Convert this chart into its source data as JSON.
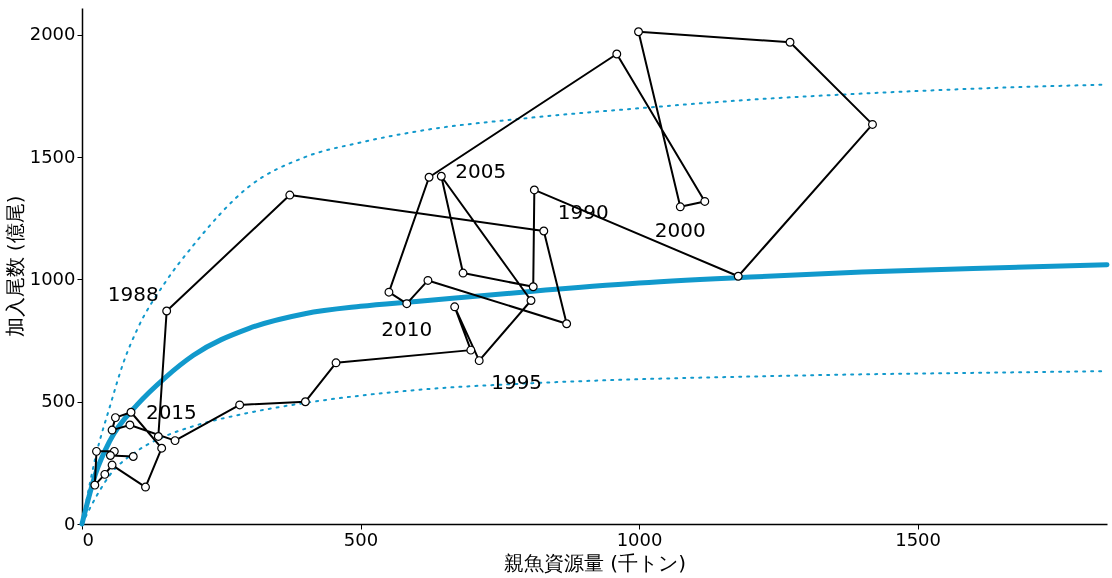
{
  "chart_data": {
    "type": "line",
    "xlabel": "親魚資源量 (千トン)",
    "ylabel": "加入尾数 (億尾)",
    "xlim": [
      0,
      1840
    ],
    "ylim": [
      0,
      2110
    ],
    "xticks": [
      0,
      500,
      1000,
      1500
    ],
    "yticks": [
      0,
      500,
      1000,
      1500,
      2000
    ],
    "grid": false,
    "series": [
      {
        "color": "#1199cc",
        "line_style": "solid",
        "marker": "none",
        "x": [
          0,
          25,
          50,
          100,
          150,
          200,
          300,
          400,
          500,
          600,
          800,
          1000,
          1200,
          1400,
          1600,
          1840
        ],
        "values": [
          0,
          210,
          340,
          490,
          600,
          690,
          800,
          860,
          890,
          910,
          950,
          985,
          1010,
          1030,
          1045,
          1060
        ]
      },
      {
        "color": "#1199cc",
        "line_style": "dotted",
        "marker": "none",
        "x": [
          0,
          25,
          50,
          75,
          100,
          150,
          200,
          300,
          400,
          500,
          600,
          800,
          1000,
          1200,
          1400,
          1600,
          1840
        ],
        "values": [
          0,
          280,
          480,
          664,
          800,
          990,
          1140,
          1380,
          1500,
          1560,
          1605,
          1660,
          1700,
          1735,
          1760,
          1780,
          1797
        ]
      },
      {
        "color": "#1199cc",
        "line_style": "dotted",
        "marker": "none",
        "x": [
          0,
          25,
          50,
          100,
          150,
          200,
          300,
          400,
          500,
          600,
          800,
          1000,
          1200,
          1400,
          1600,
          1840
        ],
        "values": [
          0,
          110,
          200,
          300,
          360,
          400,
          455,
          495,
          525,
          548,
          575,
          592,
          603,
          612,
          618,
          625
        ]
      },
      {
        "color": "#000000",
        "line_style": "solid",
        "marker": "circle",
        "x": [
          137,
          152,
          373,
          829,
          870,
          621,
          583,
          551,
          623,
          960,
          1118,
          1074,
          999,
          1271,
          1419,
          1178,
          812,
          810,
          684,
          645,
          806,
          713,
          669,
          698,
          456,
          401,
          283,
          167,
          86,
          54,
          60,
          88,
          143,
          114,
          54,
          41,
          23,
          26,
          58,
          51,
          92
        ],
        "values": [
          358,
          871,
          1345,
          1198,
          819,
          996,
          901,
          948,
          1418,
          1922,
          1319,
          1297,
          2013,
          1970,
          1634,
          1013,
          1366,
          970,
          1026,
          1422,
          914,
          668,
          888,
          711,
          659,
          500,
          487,
          341,
          405,
          384,
          435,
          457,
          310,
          151,
          241,
          203,
          159,
          297,
          297,
          280,
          276
        ]
      }
    ],
    "annotations": [
      {
        "text": "1988",
        "x": 152,
        "y": 871
      },
      {
        "text": "1990",
        "x": 829,
        "y": 1198
      },
      {
        "text": "1995",
        "x": 713,
        "y": 668
      },
      {
        "text": "2000",
        "x": 1074,
        "y": 1297
      },
      {
        "text": "2005",
        "x": 645,
        "y": 1422
      },
      {
        "text": "2010",
        "x": 583,
        "y": 901
      },
      {
        "text": "2015",
        "x": 86,
        "y": 405
      }
    ]
  }
}
